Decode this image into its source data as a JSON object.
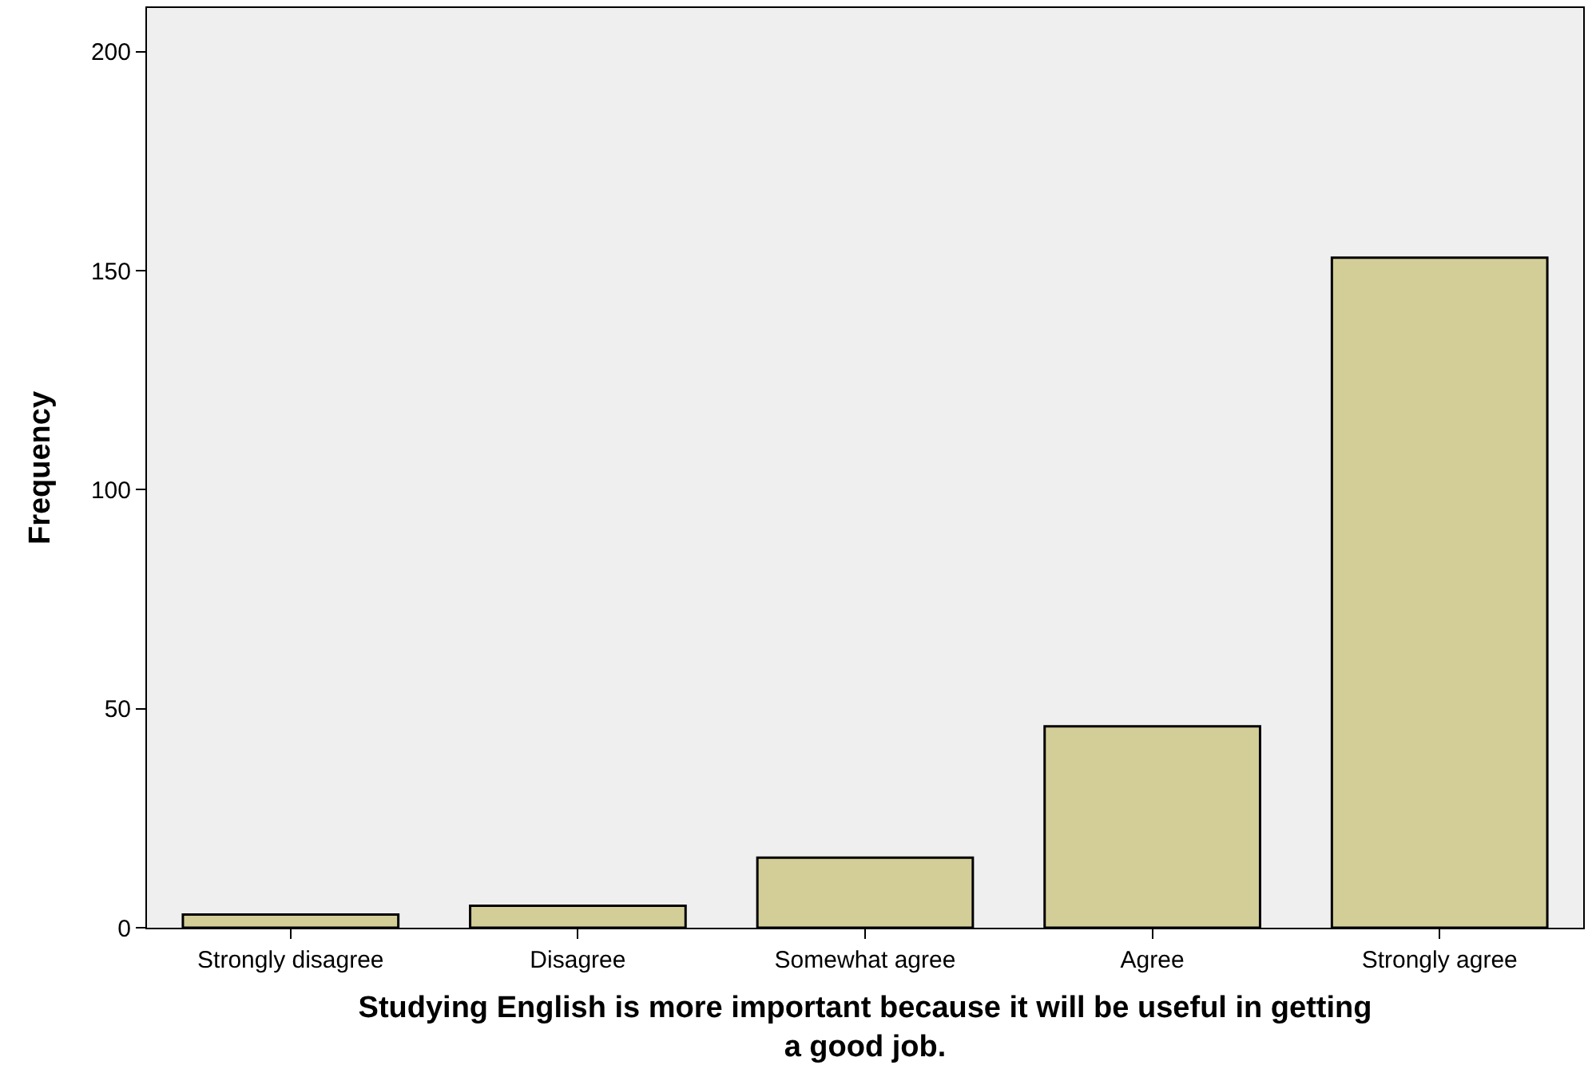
{
  "chart_data": {
    "type": "bar",
    "xlabel": "Studying English is more important because it will be useful in getting a good job.",
    "ylabel": "Frequency",
    "categories": [
      "Strongly disagree",
      "Disagree",
      "Somewhat agree",
      "Agree",
      "Strongly agree"
    ],
    "values": [
      3,
      5,
      16,
      46,
      153
    ],
    "color": "#d3ce97",
    "ylim": [
      0,
      210
    ],
    "yticks": [
      0,
      50,
      100,
      150,
      200
    ]
  }
}
